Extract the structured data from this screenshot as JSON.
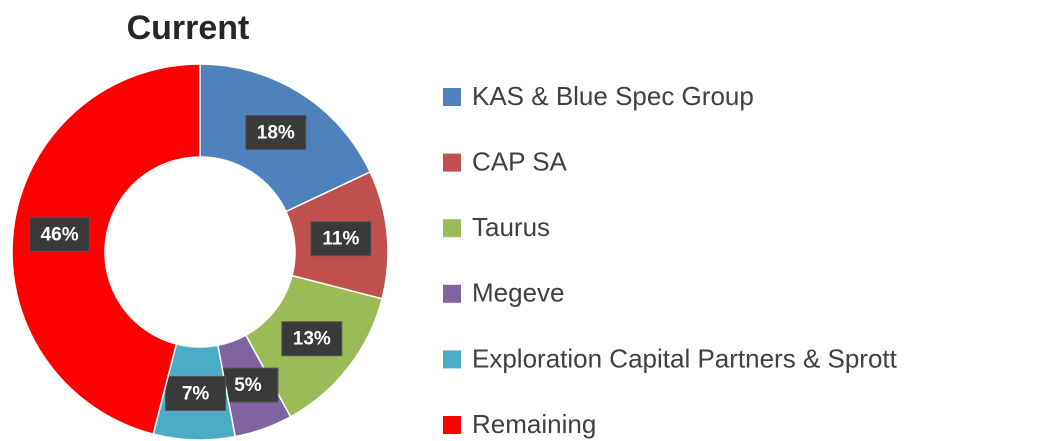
{
  "chart_data": {
    "type": "donut",
    "title": "Current",
    "categories": [
      "KAS & Blue Spec Group",
      "CAP SA",
      "Taurus",
      "Megeve",
      "Exploration Capital Partners & Sprott",
      "Remaining"
    ],
    "values": [
      18,
      11,
      13,
      5,
      7,
      46
    ],
    "value_labels": [
      "18%",
      "11%",
      "13%",
      "5%",
      "7%",
      "46%"
    ],
    "colors": [
      "#4f81bd",
      "#c0504d",
      "#9bbb59",
      "#8064a2",
      "#4bacc6",
      "#ff0000"
    ],
    "legend": "right"
  }
}
